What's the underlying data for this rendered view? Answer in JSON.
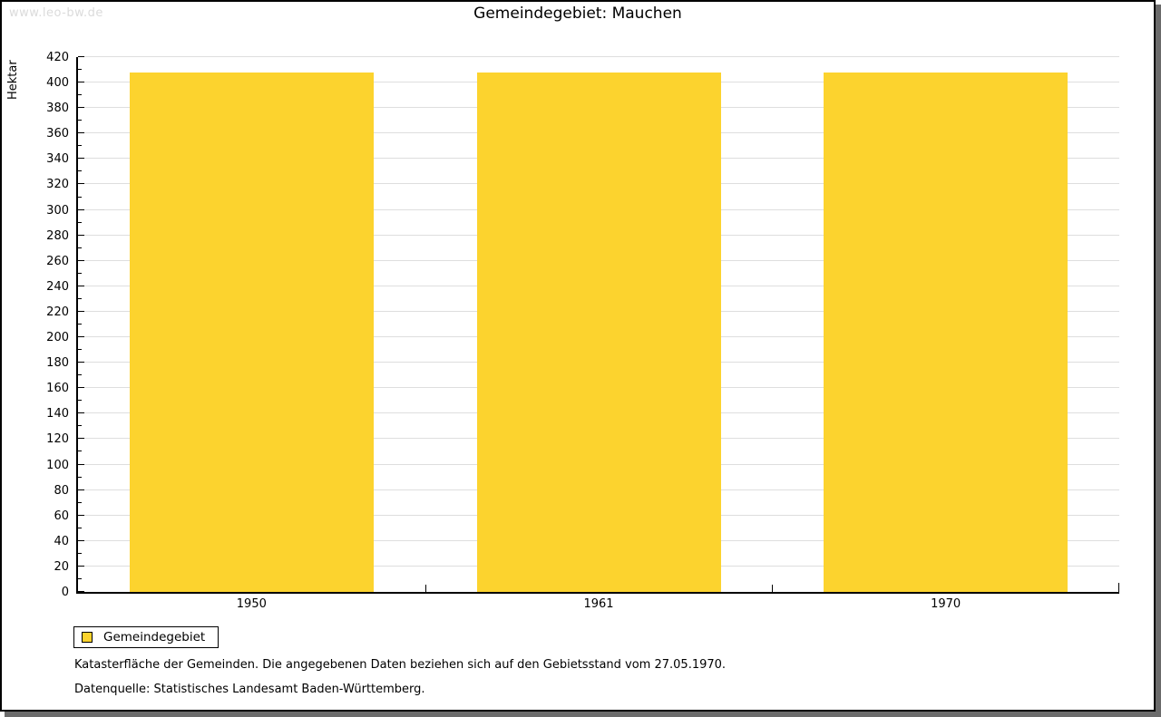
{
  "watermark": "www.leo-bw.de",
  "title": "Gemeindegebiet: Mauchen",
  "chart_data": {
    "type": "bar",
    "title": "Gemeindegebiet: Mauchen",
    "categories": [
      "1950",
      "1961",
      "1970"
    ],
    "series": [
      {
        "name": "Gemeindegebiet",
        "values": [
          408,
          408,
          408
        ]
      }
    ],
    "xlabel": "",
    "ylabel": "Hektar",
    "ylim": [
      0,
      420
    ],
    "ytick_major": 20,
    "ytick_minor": 10,
    "grid": true,
    "legend_position": "bottom-left",
    "bar_color": "#FCD32E"
  },
  "legend": {
    "label": "Gemeindegebiet",
    "swatch_color": "#FCD32E"
  },
  "footnotes": [
    "Katasterfläche der Gemeinden. Die angegebenen Daten beziehen sich auf den Gebietsstand vom 27.05.1970.",
    "Datenquelle: Statistisches Landesamt Baden-Württemberg."
  ],
  "colors": {
    "bar": "#FCD32E",
    "grid": "#DEDEDE",
    "axis": "#000000",
    "watermark": "#DBDBDB",
    "frame_shadow": "#6B6B6B"
  }
}
